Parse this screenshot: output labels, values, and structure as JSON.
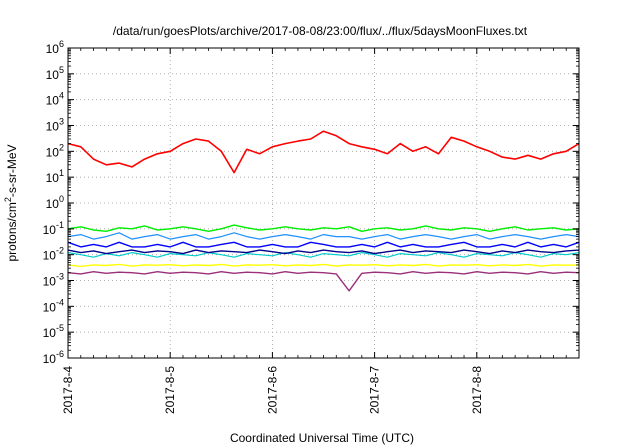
{
  "chart_data": {
    "type": "line",
    "title": "/data/run/goesPlots/archive/2017-08-08/23:00/flux/../flux/5daysMoonFluxes.txt",
    "xlabel": "Coordinated Universal Time (UTC)",
    "ylabel": {
      "prefix": "protons/cm",
      "superscript": "2",
      "suffix": "-s-sr-MeV"
    },
    "x_range": [
      "2017-08-04T00:00",
      "2017-08-09T00:00"
    ],
    "x_ticks": [
      "2017-8-4",
      "2017-8-5",
      "2017-8-6",
      "2017-8-7",
      "2017-8-8"
    ],
    "y_scale": "log",
    "ylim": [
      1e-06,
      1000000.0
    ],
    "y_ticks": [
      {
        "base": "10",
        "exp": "-6",
        "value": 1e-06
      },
      {
        "base": "10",
        "exp": "-5",
        "value": 1e-05
      },
      {
        "base": "10",
        "exp": "-4",
        "value": 0.0001
      },
      {
        "base": "10",
        "exp": "-3",
        "value": 0.001
      },
      {
        "base": "10",
        "exp": "-2",
        "value": 0.01
      },
      {
        "base": "10",
        "exp": "-1",
        "value": 0.1
      },
      {
        "base": "10",
        "exp": "0",
        "value": 1
      },
      {
        "base": "10",
        "exp": "1",
        "value": 10
      },
      {
        "base": "10",
        "exp": "2",
        "value": 100
      },
      {
        "base": "10",
        "exp": "3",
        "value": 1000
      },
      {
        "base": "10",
        "exp": "4",
        "value": 10000
      },
      {
        "base": "10",
        "exp": "5",
        "value": 100000
      },
      {
        "base": "10",
        "exp": "6",
        "value": 1000000
      }
    ],
    "grid": true,
    "x": [
      "2017-08-04T00:00",
      "2017-08-04T03:00",
      "2017-08-04T06:00",
      "2017-08-04T09:00",
      "2017-08-04T12:00",
      "2017-08-04T15:00",
      "2017-08-04T18:00",
      "2017-08-04T21:00",
      "2017-08-05T00:00",
      "2017-08-05T03:00",
      "2017-08-05T06:00",
      "2017-08-05T09:00",
      "2017-08-05T12:00",
      "2017-08-05T15:00",
      "2017-08-05T18:00",
      "2017-08-05T21:00",
      "2017-08-06T00:00",
      "2017-08-06T03:00",
      "2017-08-06T06:00",
      "2017-08-06T09:00",
      "2017-08-06T12:00",
      "2017-08-06T15:00",
      "2017-08-06T18:00",
      "2017-08-06T21:00",
      "2017-08-07T00:00",
      "2017-08-07T03:00",
      "2017-08-07T06:00",
      "2017-08-07T09:00",
      "2017-08-07T12:00",
      "2017-08-07T15:00",
      "2017-08-07T18:00",
      "2017-08-07T21:00",
      "2017-08-08T00:00",
      "2017-08-08T03:00",
      "2017-08-08T06:00",
      "2017-08-08T09:00",
      "2017-08-08T12:00",
      "2017-08-08T15:00",
      "2017-08-08T18:00",
      "2017-08-08T21:00",
      "2017-08-09T00:00"
    ],
    "series": [
      {
        "color": "#ff0000",
        "width": 1.6,
        "values": [
          200,
          150,
          50,
          30,
          35,
          25,
          50,
          80,
          100,
          200,
          300,
          250,
          100,
          15,
          120,
          80,
          150,
          200,
          250,
          300,
          600,
          400,
          200,
          150,
          120,
          80,
          200,
          100,
          150,
          80,
          350,
          250,
          150,
          100,
          60,
          50,
          70,
          50,
          80,
          100,
          200
        ]
      },
      {
        "color": "#00ee00",
        "width": 1.4,
        "values": [
          0.1,
          0.12,
          0.09,
          0.08,
          0.11,
          0.1,
          0.13,
          0.09,
          0.1,
          0.12,
          0.1,
          0.08,
          0.1,
          0.14,
          0.11,
          0.09,
          0.1,
          0.12,
          0.1,
          0.09,
          0.11,
          0.1,
          0.12,
          0.08,
          0.1,
          0.11,
          0.09,
          0.1,
          0.13,
          0.1,
          0.09,
          0.11,
          0.1,
          0.08,
          0.1,
          0.12,
          0.09,
          0.1,
          0.11,
          0.09,
          0.1
        ]
      },
      {
        "color": "#1e90ff",
        "width": 1.2,
        "values": [
          0.05,
          0.06,
          0.04,
          0.05,
          0.07,
          0.04,
          0.05,
          0.06,
          0.04,
          0.05,
          0.06,
          0.04,
          0.05,
          0.07,
          0.05,
          0.04,
          0.05,
          0.06,
          0.05,
          0.04,
          0.06,
          0.05,
          0.05,
          0.04,
          0.05,
          0.06,
          0.04,
          0.05,
          0.06,
          0.05,
          0.04,
          0.05,
          0.06,
          0.04,
          0.05,
          0.06,
          0.05,
          0.04,
          0.05,
          0.06,
          0.05
        ]
      },
      {
        "color": "#0000ff",
        "width": 1.4,
        "values": [
          0.03,
          0.02,
          0.025,
          0.02,
          0.03,
          0.02,
          0.02,
          0.025,
          0.02,
          0.03,
          0.02,
          0.02,
          0.025,
          0.03,
          0.02,
          0.02,
          0.025,
          0.02,
          0.02,
          0.03,
          0.025,
          0.02,
          0.02,
          0.025,
          0.02,
          0.03,
          0.02,
          0.025,
          0.02,
          0.02,
          0.025,
          0.03,
          0.02,
          0.02,
          0.025,
          0.02,
          0.03,
          0.02,
          0.025,
          0.02,
          0.03
        ]
      },
      {
        "color": "#00cccc",
        "width": 1.2,
        "values": [
          0.012,
          0.01,
          0.008,
          0.011,
          0.009,
          0.012,
          0.01,
          0.008,
          0.011,
          0.01,
          0.009,
          0.012,
          0.01,
          0.008,
          0.011,
          0.01,
          0.009,
          0.012,
          0.01,
          0.008,
          0.011,
          0.01,
          0.009,
          0.012,
          0.01,
          0.008,
          0.011,
          0.01,
          0.009,
          0.012,
          0.01,
          0.008,
          0.011,
          0.01,
          0.009,
          0.012,
          0.01,
          0.008,
          0.011,
          0.01,
          0.012
        ]
      },
      {
        "color": "#00008b",
        "width": 1.4,
        "values": [
          0.015,
          0.012,
          0.014,
          0.011,
          0.013,
          0.015,
          0.012,
          0.014,
          0.013,
          0.011,
          0.015,
          0.012,
          0.014,
          0.013,
          0.012,
          0.015,
          0.013,
          0.011,
          0.014,
          0.012,
          0.015,
          0.013,
          0.012,
          0.014,
          0.011,
          0.013,
          0.015,
          0.012,
          0.014,
          0.013,
          0.012,
          0.015,
          0.013,
          0.011,
          0.014,
          0.012,
          0.015,
          0.013,
          0.012,
          0.014,
          0.015
        ]
      },
      {
        "color": "#ffff00",
        "width": 1.4,
        "values": [
          0.004,
          0.0035,
          0.004,
          0.0038,
          0.0042,
          0.0036,
          0.004,
          0.0039,
          0.0041,
          0.0037,
          0.004,
          0.0038,
          0.0042,
          0.0036,
          0.004,
          0.0039,
          0.0041,
          0.0037,
          0.004,
          0.0038,
          0.0042,
          0.0036,
          0.004,
          0.0039,
          0.0041,
          0.0037,
          0.004,
          0.0038,
          0.0042,
          0.0036,
          0.004,
          0.0039,
          0.0041,
          0.0037,
          0.004,
          0.0038,
          0.0042,
          0.0036,
          0.004,
          0.0039,
          0.004
        ]
      },
      {
        "color": "#9a2f7a",
        "width": 1.4,
        "values": [
          0.002,
          0.0018,
          0.0022,
          0.0019,
          0.0021,
          0.002,
          0.0018,
          0.0022,
          0.0019,
          0.0021,
          0.002,
          0.0018,
          0.0022,
          0.0019,
          0.0021,
          0.002,
          0.0018,
          0.0022,
          0.0019,
          0.0021,
          0.002,
          0.0018,
          0.0004,
          0.0019,
          0.0021,
          0.002,
          0.0018,
          0.0022,
          0.0019,
          0.0021,
          0.002,
          0.0018,
          0.0022,
          0.0019,
          0.0021,
          0.002,
          0.0018,
          0.0022,
          0.0019,
          0.0021,
          0.002
        ]
      }
    ]
  }
}
